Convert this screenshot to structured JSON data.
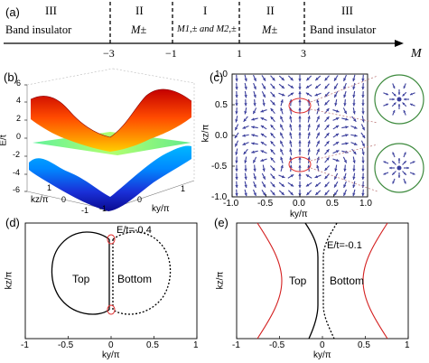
{
  "figure": {
    "panels": {
      "a": {
        "label": "(a)",
        "phases": [
          {
            "numeral": "III",
            "name": "Band insulator"
          },
          {
            "numeral": "II",
            "name": "M±"
          },
          {
            "numeral": "I",
            "name": "M1,± and M2,±"
          },
          {
            "numeral": "II",
            "name": "M±"
          },
          {
            "numeral": "III",
            "name": "Band insulator"
          }
        ],
        "ticks": [
          "−3",
          "−1",
          "1",
          "3"
        ],
        "axis_label": "M"
      },
      "b": {
        "label": "(b)",
        "zlabel": "E/t",
        "zticks": [
          "6",
          "4",
          "2",
          "0",
          "-2",
          "-4",
          "-6"
        ],
        "kz_label": "kz/π",
        "ky_label": "ky/π",
        "kz_ticks": [
          "1",
          "0",
          "-1"
        ],
        "ky_ticks": [
          "-1",
          "0",
          "1"
        ]
      },
      "c": {
        "label": "(c)",
        "xlabel": "ky/π",
        "ylabel": "kz/π",
        "xticks": [
          "-1.0",
          "-0.5",
          "0.0",
          "0.5",
          "1.0"
        ],
        "yticks": [
          "1.0",
          "0.5",
          "0.0",
          "-0.5",
          "-1.0"
        ]
      },
      "d": {
        "label": "(d)",
        "annotation": "E/t=-0.4",
        "region_left": "Top",
        "region_right": "Bottom",
        "xlabel": "ky/π",
        "ylabel": "kz/π",
        "xticks": [
          "-1",
          "-0.5",
          "0",
          "0.5",
          "1"
        ]
      },
      "e": {
        "label": "(e)",
        "annotation": "E/t=-0.1",
        "region_left": "Top",
        "region_right": "Bottom",
        "xlabel": "ky/π",
        "ylabel": "kz/π",
        "xticks": [
          "-1",
          "-0.5",
          "0",
          "0.5",
          "1"
        ]
      }
    },
    "colors": {
      "arrow": "#3b3f9c",
      "highlight": "#e03030",
      "inset_fill": "#ffffff",
      "inset_ring": "#3d8a3d",
      "zoom_line": "#c08080"
    }
  }
}
